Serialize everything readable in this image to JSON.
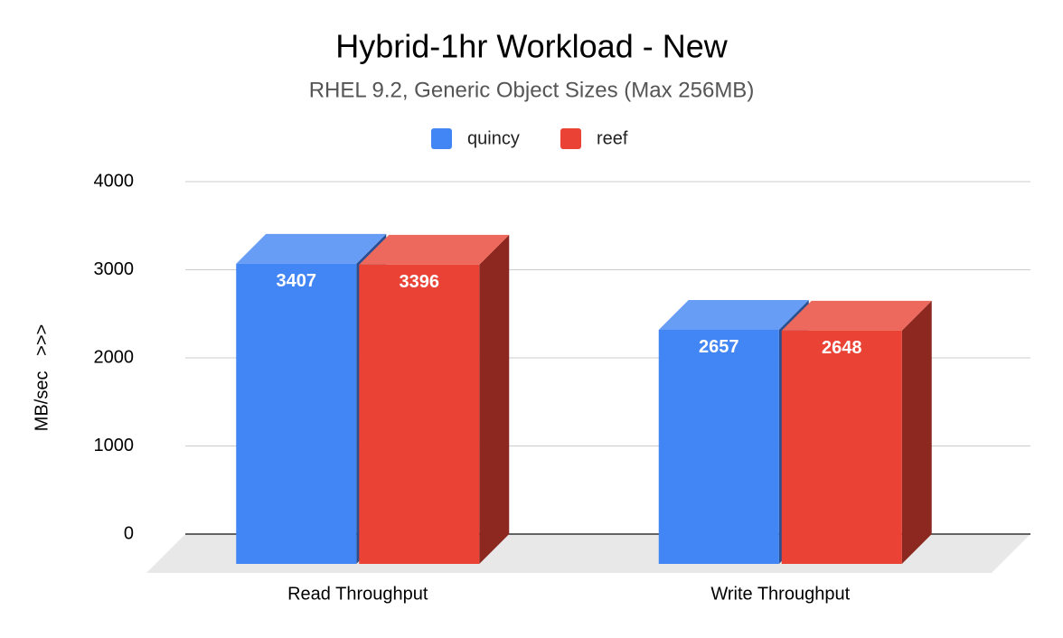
{
  "chart_data": {
    "type": "bar3d",
    "title": "Hybrid-1hr Workload - New",
    "subtitle": "RHEL 9.2, Generic Object Sizes (Max 256MB)",
    "y_label": "MB/sec   >>>",
    "categories": [
      "Read Throughput",
      "Write Throughput"
    ],
    "series": [
      {
        "name": "quincy",
        "color": "#4285f4",
        "values": [
          3407,
          2657
        ]
      },
      {
        "name": "reef",
        "color": "#ea4335",
        "values": [
          3396,
          2648
        ]
      }
    ],
    "ylim": [
      0,
      4000
    ],
    "yticks": [
      0,
      1000,
      2000,
      3000,
      4000
    ],
    "grid": true
  }
}
